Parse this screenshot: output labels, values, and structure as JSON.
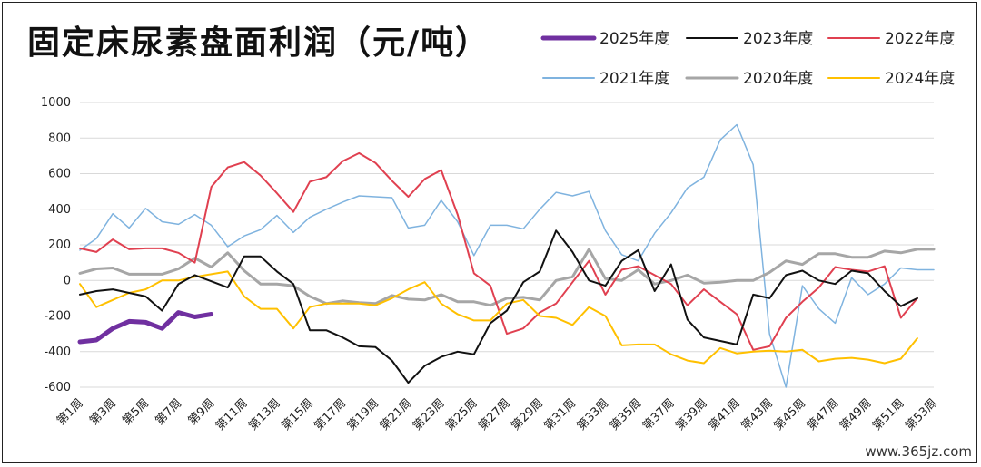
{
  "title": "固定床尿素盘面利润（元/吨）",
  "watermark": "www.365jz.com",
  "chart_data": {
    "type": "line",
    "title": "固定床尿素盘面利润（元/吨）",
    "xlabel": "",
    "ylabel": "",
    "ylim": [
      -600,
      1000
    ],
    "yticks": [
      -600,
      -400,
      -200,
      0,
      200,
      400,
      600,
      800,
      1000
    ],
    "grid": true,
    "legend_position": "top-right",
    "x_tick_labels": [
      "第1周",
      "第3周",
      "第5周",
      "第7周",
      "第9周",
      "第11周",
      "第13周",
      "第15周",
      "第17周",
      "第19周",
      "第21周",
      "第23周",
      "第25周",
      "第27周",
      "第29周",
      "第31周",
      "第33周",
      "第35周",
      "第37周",
      "第39周",
      "第41周",
      "第43周",
      "第45周",
      "第47周",
      "第49周",
      "第51周",
      "第53周"
    ],
    "x_tick_weeks": [
      1,
      3,
      5,
      7,
      9,
      11,
      13,
      15,
      17,
      19,
      21,
      23,
      25,
      27,
      29,
      31,
      33,
      35,
      37,
      39,
      41,
      43,
      45,
      47,
      49,
      51,
      53
    ],
    "series": [
      {
        "name": "2025年度",
        "color": "#7030a0",
        "width": 5,
        "x": [
          1,
          2,
          3,
          4,
          5,
          6,
          7,
          8,
          9
        ],
        "values": [
          -345,
          -335,
          -270,
          -230,
          -235,
          -270,
          -180,
          -205,
          -190
        ]
      },
      {
        "name": "2023年度",
        "color": "#111111",
        "width": 2,
        "x": [
          1,
          2,
          3,
          4,
          5,
          6,
          7,
          8,
          9,
          10,
          11,
          12,
          13,
          14,
          15,
          16,
          17,
          18,
          19,
          20,
          21,
          22,
          23,
          24,
          25,
          26,
          27,
          28,
          29,
          30,
          31,
          32,
          33,
          34,
          35,
          36,
          37,
          38,
          39,
          40,
          41,
          42,
          43,
          44,
          45,
          46,
          47,
          48,
          49,
          50,
          51,
          52
        ],
        "values": [
          -80,
          -60,
          -50,
          -70,
          -90,
          -170,
          -20,
          30,
          -5,
          -40,
          135,
          135,
          50,
          -20,
          -280,
          -280,
          -320,
          -370,
          -375,
          -450,
          -575,
          -480,
          -430,
          -400,
          -415,
          -240,
          -170,
          -10,
          50,
          280,
          160,
          0,
          -30,
          110,
          170,
          -60,
          90,
          -220,
          -320,
          -340,
          -360,
          -80,
          -100,
          30,
          55,
          0,
          -20,
          55,
          40,
          -60,
          -145,
          -100
        ]
      },
      {
        "name": "2022年度",
        "color": "#e04050",
        "width": 2,
        "x": [
          1,
          2,
          3,
          4,
          5,
          6,
          7,
          8,
          9,
          10,
          11,
          12,
          13,
          14,
          15,
          16,
          17,
          18,
          19,
          20,
          21,
          22,
          23,
          24,
          25,
          26,
          27,
          28,
          29,
          30,
          31,
          32,
          33,
          34,
          35,
          36,
          37,
          38,
          39,
          40,
          41,
          42,
          43,
          44,
          45,
          46,
          47,
          48,
          49,
          50,
          51,
          52
        ],
        "values": [
          180,
          160,
          230,
          175,
          180,
          180,
          155,
          100,
          525,
          635,
          665,
          590,
          490,
          385,
          555,
          580,
          670,
          715,
          660,
          560,
          470,
          570,
          620,
          370,
          40,
          -30,
          -300,
          -270,
          -180,
          -130,
          -10,
          110,
          -80,
          60,
          80,
          30,
          -20,
          -140,
          -50,
          -120,
          -190,
          -390,
          -370,
          -210,
          -120,
          -40,
          75,
          60,
          50,
          80,
          -210,
          -100
        ]
      },
      {
        "name": "2021年度",
        "color": "#7fb3df",
        "width": 1.5,
        "x": [
          1,
          2,
          3,
          4,
          5,
          6,
          7,
          8,
          9,
          10,
          11,
          12,
          13,
          14,
          15,
          16,
          17,
          18,
          19,
          20,
          21,
          22,
          23,
          24,
          25,
          26,
          27,
          28,
          29,
          30,
          31,
          32,
          33,
          34,
          35,
          36,
          37,
          38,
          39,
          40,
          41,
          42,
          43,
          44,
          45,
          46,
          47,
          48,
          49,
          50,
          51,
          52,
          53
        ],
        "values": [
          170,
          235,
          375,
          295,
          405,
          330,
          315,
          370,
          310,
          190,
          250,
          285,
          365,
          270,
          355,
          400,
          440,
          475,
          470,
          465,
          295,
          310,
          450,
          330,
          140,
          310,
          310,
          290,
          400,
          495,
          475,
          500,
          280,
          145,
          110,
          265,
          380,
          520,
          580,
          790,
          875,
          650,
          -300,
          -600,
          -30,
          -160,
          -240,
          15,
          -80,
          -20,
          70,
          60,
          60
        ]
      },
      {
        "name": "2020年度",
        "color": "#a6a6a6",
        "width": 3,
        "x": [
          1,
          2,
          3,
          4,
          5,
          6,
          7,
          8,
          9,
          10,
          11,
          12,
          13,
          14,
          15,
          16,
          17,
          18,
          19,
          20,
          21,
          22,
          23,
          24,
          25,
          26,
          27,
          28,
          29,
          30,
          31,
          32,
          33,
          34,
          35,
          36,
          37,
          38,
          39,
          40,
          41,
          42,
          43,
          44,
          45,
          46,
          47,
          48,
          49,
          50,
          51,
          52,
          53
        ],
        "values": [
          40,
          65,
          70,
          35,
          35,
          35,
          65,
          125,
          75,
          155,
          55,
          -20,
          -20,
          -30,
          -90,
          -130,
          -115,
          -125,
          -130,
          -85,
          -105,
          -110,
          -80,
          -120,
          -120,
          -140,
          -100,
          -95,
          -110,
          0,
          20,
          175,
          10,
          0,
          60,
          -20,
          0,
          30,
          -15,
          -10,
          0,
          0,
          45,
          110,
          90,
          150,
          150,
          130,
          130,
          165,
          155,
          175,
          175
        ]
      },
      {
        "name": "2024年度",
        "color": "#ffc000",
        "width": 2,
        "x": [
          1,
          2,
          3,
          4,
          5,
          6,
          7,
          8,
          9,
          10,
          11,
          12,
          13,
          14,
          15,
          16,
          17,
          18,
          19,
          20,
          21,
          22,
          23,
          24,
          25,
          26,
          27,
          28,
          29,
          30,
          31,
          32,
          33,
          34,
          35,
          36,
          37,
          38,
          39,
          40,
          41,
          42,
          43,
          44,
          45,
          46,
          47,
          48,
          49,
          50,
          51,
          52
        ],
        "values": [
          -20,
          -150,
          -110,
          -70,
          -50,
          0,
          0,
          20,
          35,
          50,
          -90,
          -160,
          -160,
          -270,
          -150,
          -130,
          -130,
          -130,
          -140,
          -100,
          -50,
          -10,
          -130,
          -190,
          -225,
          -225,
          -130,
          -110,
          -200,
          -210,
          -250,
          -150,
          -200,
          -365,
          -360,
          -360,
          -415,
          -450,
          -465,
          -380,
          -410,
          -400,
          -395,
          -400,
          -390,
          -455,
          -440,
          -435,
          -445,
          -465,
          -440,
          -325
        ]
      }
    ],
    "legend_order": [
      "2025年度",
      "2023年度",
      "2022年度",
      "2021年度",
      "2020年度",
      "2024年度"
    ]
  }
}
